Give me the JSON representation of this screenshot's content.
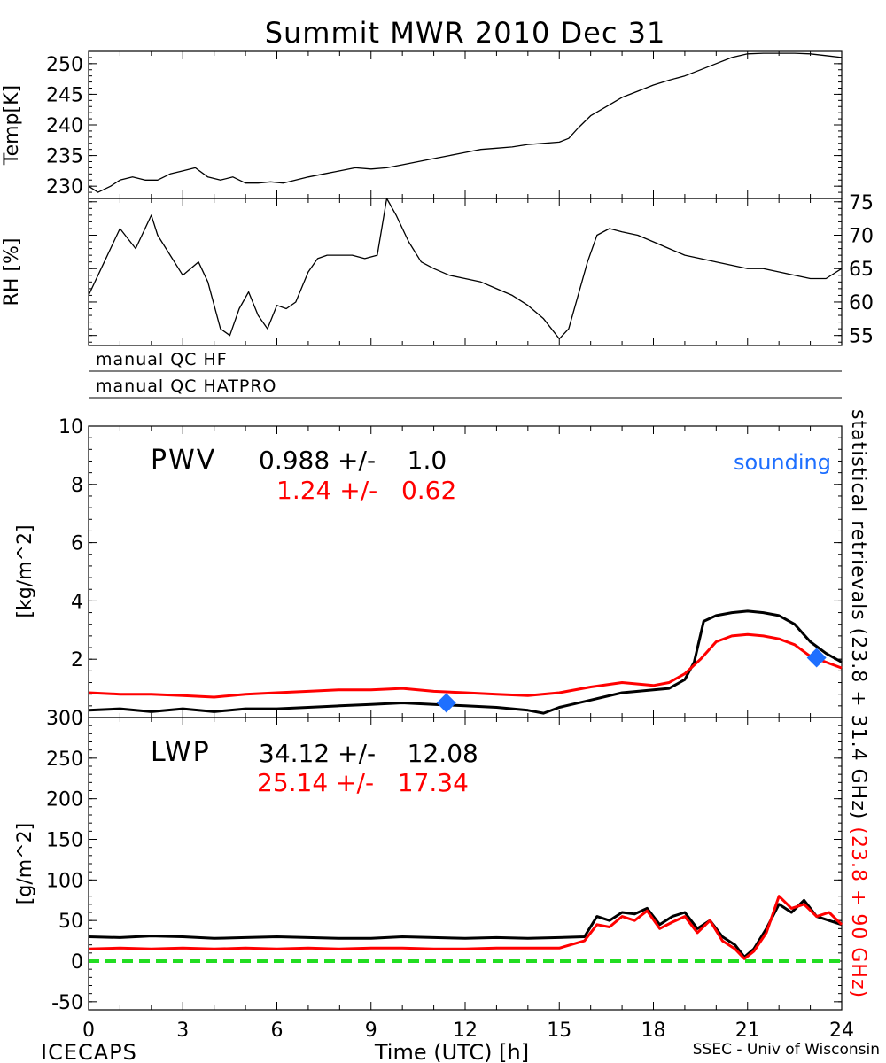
{
  "title": "Summit MWR 2010 Dec 31",
  "footer": {
    "left": "ICECAPS",
    "center": "Time (UTC) [h]",
    "right": "SSEC - Univ of Wisconsin"
  },
  "qc_rows": [
    "manual QC HF",
    "manual QC HATPRO"
  ],
  "right_label": {
    "part1": "statistical retrievals (23.8 + 31.4 GHz)",
    "part2": "(23.8 + 90 GHz)"
  },
  "colors": {
    "series_black": "#000000",
    "series_red": "#ff0000",
    "sounding": "#1e6fff",
    "zero_line": "#22dd22"
  },
  "chart_data": [
    {
      "type": "line",
      "ylabel": "Temp[K]",
      "ylim": [
        228,
        252
      ],
      "xlim": [
        0,
        24
      ],
      "yticks": [
        230,
        235,
        240,
        245,
        250
      ],
      "series": [
        {
          "color": "#000000",
          "x": [
            0,
            0.3,
            0.7,
            1.0,
            1.4,
            1.8,
            2.2,
            2.6,
            3.0,
            3.4,
            3.8,
            4.2,
            4.6,
            5.0,
            5.4,
            5.8,
            6.2,
            6.6,
            7.0,
            7.5,
            8.0,
            8.5,
            9.0,
            9.5,
            10.0,
            10.5,
            11.0,
            11.5,
            12.0,
            12.5,
            13.0,
            13.5,
            14.0,
            14.5,
            15.0,
            15.3,
            15.6,
            16.0,
            16.5,
            17.0,
            17.5,
            18.0,
            18.5,
            19.0,
            19.5,
            20.0,
            20.5,
            21.0,
            21.5,
            22.0,
            22.5,
            23.0,
            23.5,
            24.0
          ],
          "y": [
            230,
            229,
            230,
            231,
            231.5,
            231,
            231,
            232,
            232.5,
            233,
            231.5,
            231,
            231.5,
            230.5,
            230.5,
            230.7,
            230.5,
            231,
            231.5,
            232,
            232.5,
            233,
            232.8,
            233,
            233.5,
            234,
            234.5,
            235,
            235.5,
            236,
            236.2,
            236.4,
            236.8,
            237,
            237.2,
            237.8,
            239.5,
            241.5,
            243,
            244.5,
            245.5,
            246.5,
            247.3,
            248,
            249,
            250,
            251,
            251.6,
            251.7,
            251.7,
            251.7,
            251.6,
            251.3,
            251
          ]
        }
      ]
    },
    {
      "type": "line",
      "ylabel": "RH [%]",
      "ylim": [
        53.5,
        75.5
      ],
      "xlim": [
        0,
        24
      ],
      "yticks": [
        55,
        60,
        65,
        70,
        75
      ],
      "series": [
        {
          "color": "#000000",
          "x": [
            0,
            0.5,
            1.0,
            1.5,
            2.0,
            2.2,
            2.6,
            3.0,
            3.5,
            3.8,
            4.2,
            4.5,
            4.8,
            5.1,
            5.4,
            5.7,
            6.0,
            6.3,
            6.6,
            7.0,
            7.3,
            7.6,
            8.0,
            8.4,
            8.8,
            9.2,
            9.5,
            9.8,
            10.2,
            10.6,
            11.0,
            11.5,
            12.0,
            12.5,
            13.0,
            13.5,
            14.0,
            14.5,
            15.0,
            15.3,
            15.6,
            15.9,
            16.2,
            16.6,
            17.0,
            17.5,
            18.0,
            18.5,
            19.0,
            19.5,
            20.0,
            20.5,
            21.0,
            21.5,
            22.0,
            22.5,
            23.0,
            23.5,
            24.0
          ],
          "y": [
            61,
            66,
            71,
            68,
            73,
            70,
            67,
            64,
            66,
            63,
            56,
            55,
            59,
            61.5,
            58,
            56,
            59.5,
            59,
            60,
            64.5,
            66.5,
            67,
            67,
            67,
            66.5,
            67,
            75.5,
            73,
            69,
            66,
            65,
            64,
            63.5,
            63,
            62,
            61,
            59.5,
            57.5,
            54.5,
            56,
            61,
            66,
            70,
            71,
            70.5,
            70,
            69,
            68,
            67,
            66.5,
            66,
            65.5,
            65,
            65,
            64.5,
            64,
            63.5,
            63.5,
            65
          ]
        }
      ]
    },
    {
      "type": "line",
      "ylabel": "[kg/m^2]",
      "ylim": [
        0,
        10
      ],
      "xlim": [
        0,
        24
      ],
      "yticks": [
        0,
        2,
        4,
        6,
        8,
        10
      ],
      "annotations": {
        "name": "PWV",
        "black_stat": "0.988 +/-    1.0",
        "red_stat": "1.24 +/-   0.62",
        "sounding_label": "sounding"
      },
      "series": [
        {
          "color": "#000000",
          "x": [
            0,
            1,
            2,
            3,
            4,
            5,
            6,
            7,
            8,
            9,
            10,
            11,
            12,
            13,
            14,
            14.5,
            15,
            16,
            17,
            18,
            18.5,
            19,
            19.3,
            19.6,
            20,
            20.5,
            21,
            21.5,
            22,
            22.5,
            23,
            23.5,
            24
          ],
          "y": [
            0.25,
            0.3,
            0.2,
            0.3,
            0.2,
            0.3,
            0.3,
            0.35,
            0.4,
            0.45,
            0.5,
            0.45,
            0.4,
            0.35,
            0.25,
            0.15,
            0.35,
            0.6,
            0.85,
            0.95,
            1.0,
            1.3,
            1.9,
            3.3,
            3.5,
            3.6,
            3.65,
            3.6,
            3.5,
            3.2,
            2.6,
            2.2,
            1.9
          ]
        },
        {
          "color": "#ff0000",
          "x": [
            0,
            1,
            2,
            3,
            4,
            5,
            6,
            7,
            8,
            9,
            10,
            11,
            12,
            13,
            14,
            15,
            16,
            17,
            18,
            18.5,
            19,
            19.5,
            20,
            20.5,
            21,
            21.5,
            22,
            22.5,
            23,
            23.5,
            24
          ],
          "y": [
            0.85,
            0.8,
            0.8,
            0.75,
            0.7,
            0.8,
            0.85,
            0.9,
            0.95,
            0.95,
            1.0,
            0.9,
            0.85,
            0.8,
            0.75,
            0.85,
            1.05,
            1.2,
            1.1,
            1.2,
            1.5,
            2.0,
            2.6,
            2.8,
            2.85,
            2.8,
            2.7,
            2.5,
            2.1,
            1.9,
            1.7
          ]
        },
        {
          "color": "#1e6fff",
          "marker": "diamond",
          "label": "sounding",
          "x": [
            11.4,
            23.2
          ],
          "y": [
            0.5,
            2.05
          ]
        }
      ]
    },
    {
      "type": "line",
      "ylabel": "[g/m^2]",
      "ylim": [
        -60,
        300
      ],
      "xlim": [
        0,
        24
      ],
      "yticks": [
        -50,
        0,
        50,
        100,
        150,
        200,
        250,
        300
      ],
      "xlabel": "Time (UTC) [h]",
      "xticks": [
        0,
        3,
        6,
        9,
        12,
        15,
        18,
        21,
        24
      ],
      "annotations": {
        "name": "LWP",
        "black_stat": "34.12 +/-    12.08",
        "red_stat": "25.14 +/-   17.34"
      },
      "series": [
        {
          "color": "#000000",
          "x": [
            0,
            1,
            2,
            3,
            4,
            5,
            6,
            7,
            8,
            9,
            10,
            11,
            12,
            13,
            14,
            15,
            15.8,
            16.2,
            16.6,
            17.0,
            17.4,
            17.8,
            18.2,
            18.6,
            19.0,
            19.4,
            19.8,
            20.2,
            20.6,
            20.9,
            21.2,
            21.6,
            22.0,
            22.4,
            22.8,
            23.2,
            23.6,
            24.0
          ],
          "y": [
            30,
            29,
            31,
            30,
            28,
            29,
            30,
            29,
            28,
            28,
            30,
            29,
            28,
            29,
            28,
            29,
            30,
            55,
            50,
            60,
            58,
            65,
            45,
            55,
            60,
            40,
            50,
            30,
            20,
            5,
            15,
            40,
            70,
            60,
            75,
            55,
            50,
            45
          ]
        },
        {
          "color": "#ff0000",
          "x": [
            0,
            1,
            2,
            3,
            4,
            5,
            6,
            7,
            8,
            9,
            10,
            11,
            12,
            13,
            14,
            15,
            15.8,
            16.2,
            16.6,
            17.0,
            17.4,
            17.8,
            18.2,
            18.6,
            19.0,
            19.4,
            19.8,
            20.2,
            20.6,
            20.9,
            21.2,
            21.6,
            22.0,
            22.4,
            22.8,
            23.2,
            23.6,
            24.0
          ],
          "y": [
            15,
            16,
            15,
            16,
            15,
            16,
            15,
            16,
            15,
            16,
            16,
            15,
            15,
            16,
            16,
            16,
            25,
            45,
            42,
            55,
            50,
            62,
            40,
            48,
            55,
            35,
            50,
            25,
            15,
            3,
            12,
            35,
            80,
            65,
            70,
            55,
            60,
            45
          ]
        },
        {
          "color": "#22dd22",
          "style": "dashed",
          "x": [
            0,
            24
          ],
          "y": [
            0,
            0
          ]
        }
      ]
    }
  ]
}
